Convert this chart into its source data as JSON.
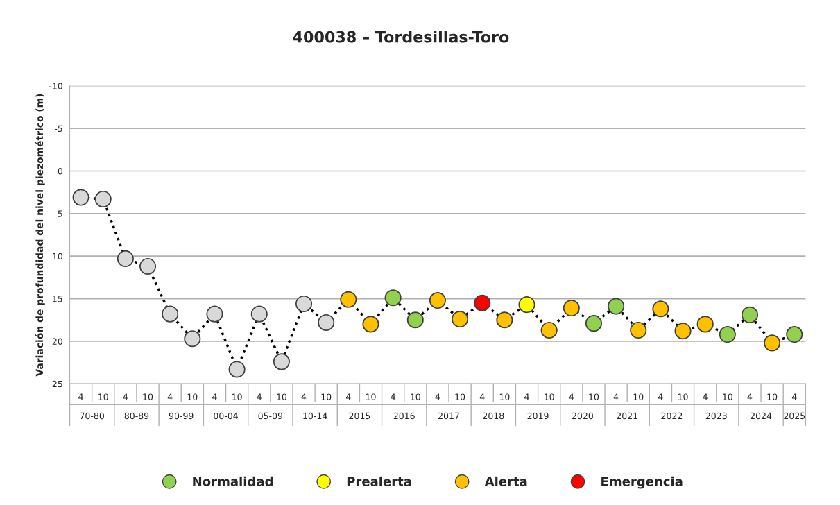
{
  "chart_data": {
    "type": "line",
    "title": "400038 – Tordesillas-Toro",
    "ylabel": "Variación de profundidad del nivel piezométrico (m)",
    "categories": [
      "4",
      "10",
      "4",
      "10",
      "4",
      "10",
      "4",
      "10",
      "4",
      "10",
      "4",
      "10",
      "4",
      "10",
      "4",
      "10",
      "4",
      "10",
      "4",
      "10",
      "4",
      "10",
      "4",
      "10",
      "4",
      "10",
      "4",
      "10",
      "4",
      "10",
      "4",
      "10",
      "4"
    ],
    "annotations": [
      "70-80",
      "80-89",
      "90-99",
      "00-04",
      "05-09",
      "10-14",
      "2015",
      "2016",
      "2017",
      "2018",
      "2019",
      "2020",
      "2021",
      "2022",
      "2023",
      "2024",
      "2025"
    ],
    "series": [
      {
        "color": "#000000",
        "line_style": "dotted",
        "marker": "none",
        "values": [
          3.1,
          3.3,
          10.3,
          11.2,
          16.8,
          19.7,
          16.8,
          23.3,
          16.8,
          22.4,
          15.6,
          17.8,
          15.1,
          18.0,
          14.9,
          17.5,
          15.2,
          17.4,
          15.5,
          17.5,
          15.7,
          18.7,
          16.1,
          17.9,
          15.9,
          18.7,
          16.2,
          18.8,
          18.0,
          19.2,
          16.9,
          20.2,
          19.2
        ]
      },
      {
        "type": "scatter",
        "color": "#d9d9d9",
        "marker": "circle",
        "values": [
          3.1,
          3.3,
          10.3,
          11.2,
          16.8,
          19.7,
          16.8,
          23.3,
          16.8,
          22.4,
          15.6,
          17.8,
          null,
          null,
          null,
          null,
          null,
          null,
          null,
          null,
          null,
          null,
          null,
          null,
          null,
          null,
          null,
          null,
          null,
          null,
          null,
          null,
          null
        ]
      },
      {
        "type": "scatter",
        "name": "Normalidad",
        "color": "#92d050",
        "marker": "circle",
        "values": [
          null,
          null,
          null,
          null,
          null,
          null,
          null,
          null,
          null,
          null,
          null,
          null,
          null,
          null,
          14.9,
          17.5,
          null,
          null,
          null,
          null,
          null,
          null,
          null,
          17.9,
          15.9,
          null,
          null,
          null,
          null,
          19.2,
          16.9,
          null,
          19.2
        ]
      },
      {
        "type": "scatter",
        "name": "Prealerta",
        "color": "#ffff00",
        "marker": "circle",
        "values": [
          null,
          null,
          null,
          null,
          null,
          null,
          null,
          null,
          null,
          null,
          null,
          null,
          null,
          null,
          null,
          null,
          null,
          null,
          null,
          null,
          15.7,
          null,
          null,
          null,
          null,
          null,
          null,
          null,
          null,
          null,
          null,
          null,
          null
        ]
      },
      {
        "type": "scatter",
        "name": "Alerta",
        "color": "#ffc000",
        "marker": "circle",
        "values": [
          null,
          null,
          null,
          null,
          null,
          null,
          null,
          null,
          null,
          null,
          null,
          null,
          15.1,
          18.0,
          null,
          null,
          15.2,
          17.4,
          null,
          17.5,
          null,
          18.7,
          16.1,
          null,
          null,
          18.7,
          16.2,
          18.8,
          18.0,
          null,
          null,
          20.2,
          null
        ]
      },
      {
        "type": "scatter",
        "name": "Emergencia",
        "color": "#ff0000",
        "marker": "circle",
        "values": [
          null,
          null,
          null,
          null,
          null,
          null,
          null,
          null,
          null,
          null,
          null,
          null,
          null,
          null,
          null,
          null,
          null,
          null,
          15.5,
          null,
          null,
          null,
          null,
          null,
          null,
          null,
          null,
          null,
          null,
          null,
          null,
          null,
          null
        ]
      }
    ],
    "ylim": [
      25,
      -10
    ],
    "yticks": [
      -10,
      -5,
      0,
      5,
      10,
      15,
      20,
      25
    ],
    "grid": "y",
    "legend": "bottom"
  }
}
